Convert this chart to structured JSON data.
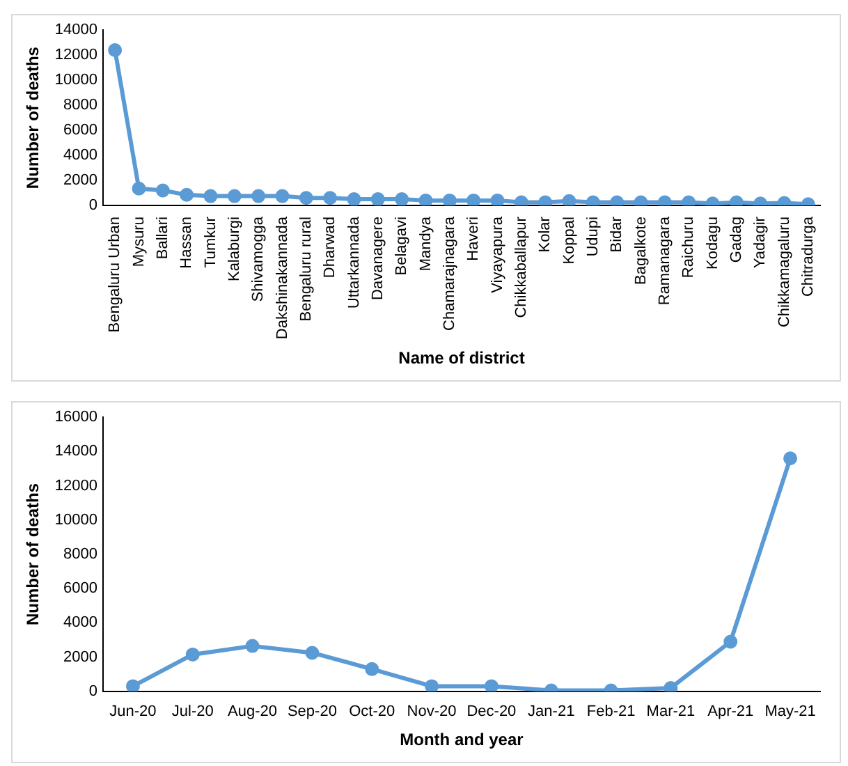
{
  "chart_data": [
    {
      "type": "line",
      "xlabel": "Name of district",
      "ylabel": "Number of deaths",
      "categories": [
        "Bengaluru Urban",
        "Mysuru",
        "Ballari",
        "Hassan",
        "Tumkur",
        "Kalaburgi",
        "Shivamogga",
        "Dakshinakannada",
        "Bengaluru rural",
        "Dharwad",
        "Uttarkannada",
        "Davanagere",
        "Belagavi",
        "Mandya",
        "Chamarajnagara",
        "Haveri",
        "Viyayapura",
        "Chikkaballapur",
        "Kolar",
        "Koppal",
        "Udupi",
        "Bidar",
        "Bagalkote",
        "Ramanagara",
        "Raichuru",
        "Kodagu",
        "Gadag",
        "Yadagir",
        "Chikkamagaluru",
        "Chitradurga"
      ],
      "series": [
        {
          "color": "#5b9bd5",
          "values": [
            12400,
            1350,
            1200,
            850,
            750,
            750,
            750,
            750,
            600,
            600,
            500,
            500,
            500,
            400,
            400,
            400,
            400,
            250,
            250,
            350,
            250,
            250,
            250,
            250,
            250,
            150,
            250,
            150,
            200,
            100
          ]
        }
      ],
      "ylim": [
        0,
        14000
      ],
      "yticks": [
        0,
        2000,
        4000,
        6000,
        8000,
        10000,
        12000,
        14000
      ],
      "grid": false,
      "legend": false,
      "marker": "circle",
      "line_style": "solid"
    },
    {
      "type": "line",
      "xlabel": "Month and year",
      "ylabel": "Number of deaths",
      "categories": [
        "Jun-20",
        "Jul-20",
        "Aug-20",
        "Sep-20",
        "Oct-20",
        "Nov-20",
        "Dec-20",
        "Jan-21",
        "Feb-21",
        "Mar-21",
        "Apr-21",
        "May-21"
      ],
      "series": [
        {
          "color": "#5b9bd5",
          "values": [
            300,
            2150,
            2650,
            2250,
            1300,
            300,
            300,
            50,
            50,
            200,
            2900,
            13600
          ]
        }
      ],
      "ylim": [
        0,
        16000
      ],
      "yticks": [
        0,
        2000,
        4000,
        6000,
        8000,
        10000,
        12000,
        14000,
        16000
      ],
      "grid": false,
      "legend": false,
      "marker": "circle",
      "line_style": "solid"
    }
  ]
}
